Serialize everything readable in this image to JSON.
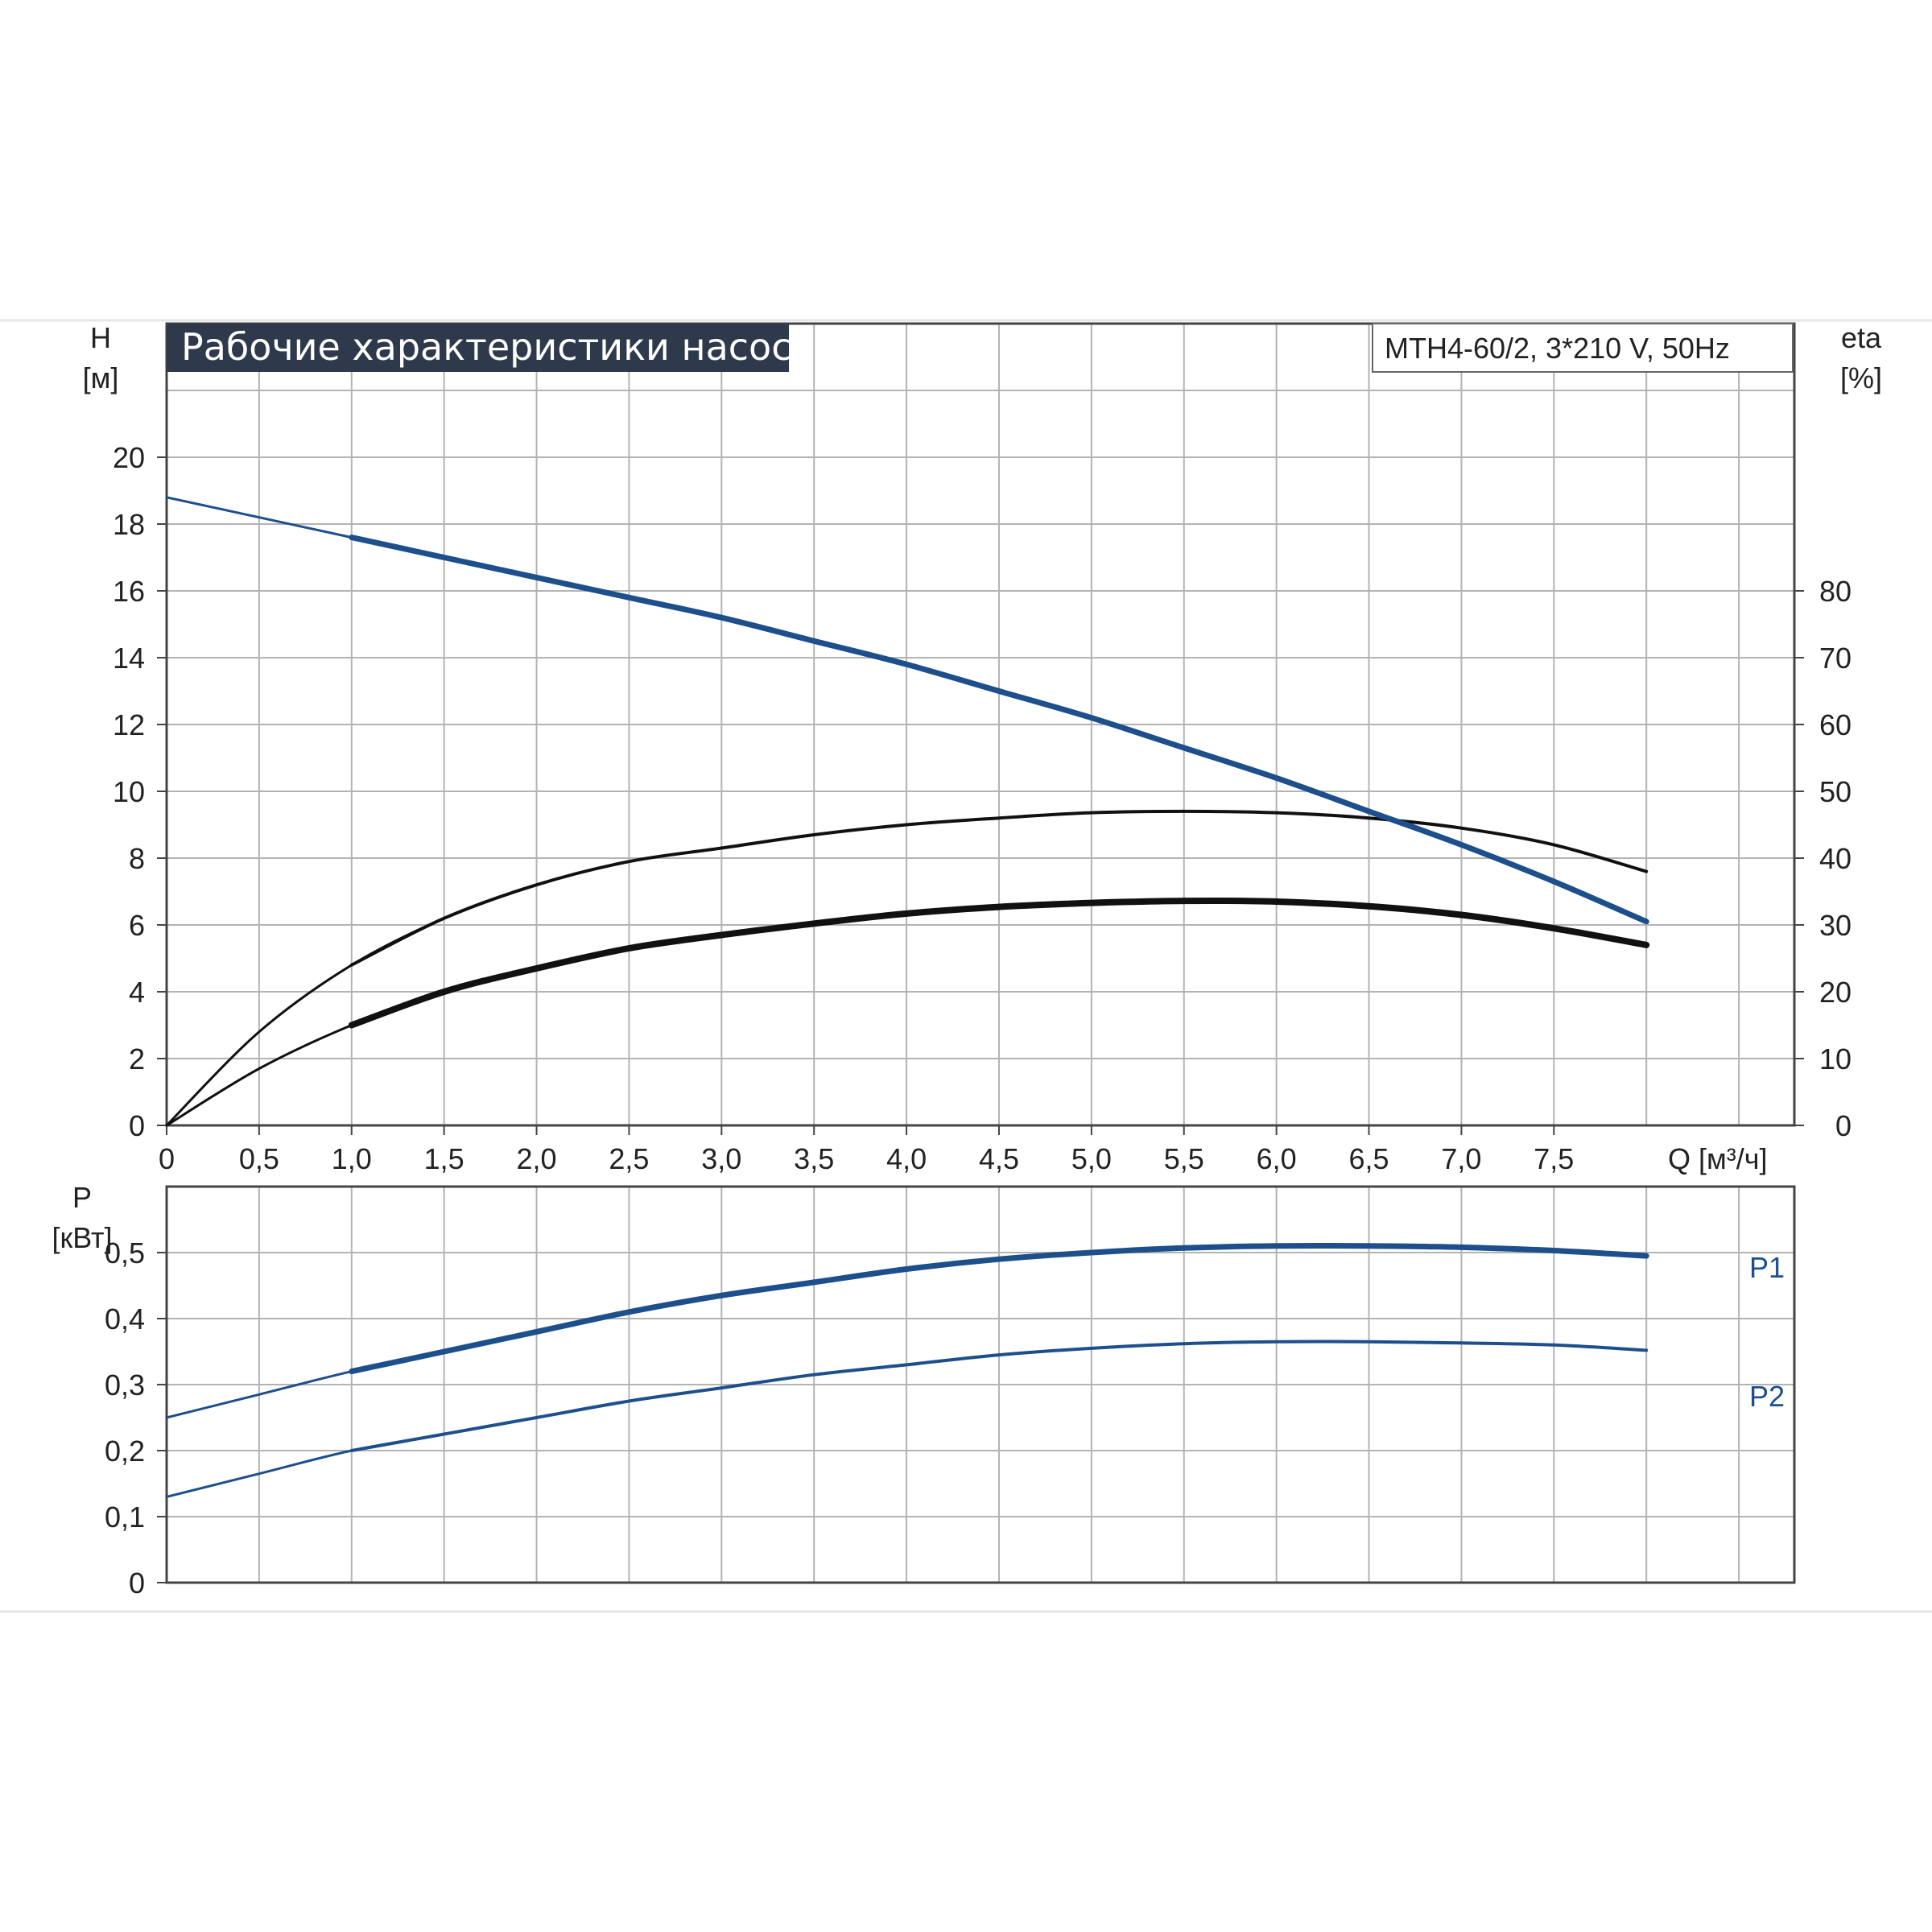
{
  "chart_data": [
    {
      "type": "line",
      "title": "Рабочие характеристики насоса",
      "subtitle": "MTH4-60/2, 3*210 V, 50Hz",
      "ylabel": "H",
      "yunit": "[м]",
      "y2label": "eta",
      "y2unit": "[%]",
      "xlabel": "Q [м³/ч]",
      "x_tick_labels": [
        "0",
        "0,5",
        "1,0",
        "1,5",
        "2,0",
        "2,5",
        "3,0",
        "3,5",
        "4,0",
        "4,5",
        "5,0",
        "5,5",
        "6,0",
        "6,5",
        "7,0",
        "7,5"
      ],
      "y_tick_labels": [
        "0",
        "2",
        "4",
        "6",
        "8",
        "10",
        "12",
        "14",
        "16",
        "18",
        "20"
      ],
      "y2_tick_labels": [
        "0",
        "10",
        "20",
        "30",
        "40",
        "50",
        "60",
        "70",
        "80"
      ],
      "xlim": [
        0,
        8.8
      ],
      "ylim": [
        0,
        24
      ],
      "y2lim": [
        0,
        120
      ],
      "grid": true,
      "colors": {
        "head": "#1c4f8c",
        "efficiency": "#111111",
        "grid": "#b3b3b3",
        "title_bg": "#2e3a4b"
      },
      "series": [
        {
          "axis": "y",
          "x": [
            0,
            0.5,
            1.0,
            1.5,
            2.0,
            2.5,
            3.0,
            3.5,
            4.0,
            4.5,
            5.0,
            5.5,
            6.0,
            6.5,
            7.0,
            7.5,
            8.0
          ],
          "values": [
            18.8,
            18.2,
            17.6,
            17.0,
            16.4,
            15.8,
            15.2,
            14.5,
            13.8,
            13.0,
            12.2,
            11.3,
            10.4,
            9.4,
            8.4,
            7.3,
            6.1
          ]
        },
        {
          "axis": "y2",
          "x": [
            0,
            0.5,
            1.0,
            1.5,
            2.0,
            2.5,
            3.0,
            3.5,
            4.0,
            4.5,
            5.0,
            5.5,
            6.0,
            6.5,
            7.0,
            7.5,
            8.0
          ],
          "values": [
            0,
            14,
            24,
            31,
            36,
            39.5,
            41.5,
            43.5,
            45,
            46,
            46.8,
            47,
            46.8,
            46,
            44.5,
            42,
            38
          ]
        },
        {
          "axis": "y2",
          "x": [
            0,
            0.5,
            1.0,
            1.5,
            2.0,
            2.5,
            3.0,
            3.5,
            4.0,
            4.5,
            5.0,
            5.5,
            6.0,
            6.5,
            7.0,
            7.5,
            8.0
          ],
          "values": [
            0,
            8.5,
            15,
            20,
            23.5,
            26.5,
            28.5,
            30.2,
            31.7,
            32.7,
            33.3,
            33.6,
            33.5,
            32.8,
            31.5,
            29.5,
            27
          ]
        }
      ]
    },
    {
      "type": "line",
      "ylabel": "P",
      "yunit": "[кВт]",
      "y_tick_labels": [
        "0",
        "0,1",
        "0,2",
        "0,3",
        "0,4",
        "0,5"
      ],
      "xlim": [
        0,
        8.8
      ],
      "ylim": [
        0,
        0.6
      ],
      "grid": true,
      "colors": {
        "p1": "#1c4f8c",
        "p2": "#1c4f8c"
      },
      "series": [
        {
          "name": "P1",
          "x": [
            0,
            0.5,
            1.0,
            1.5,
            2.0,
            2.5,
            3.0,
            3.5,
            4.0,
            4.5,
            5.0,
            5.5,
            6.0,
            6.5,
            7.0,
            7.5,
            8.0
          ],
          "values": [
            0.25,
            0.285,
            0.32,
            0.35,
            0.38,
            0.41,
            0.435,
            0.455,
            0.475,
            0.49,
            0.5,
            0.507,
            0.51,
            0.51,
            0.508,
            0.503,
            0.495
          ]
        },
        {
          "name": "P2",
          "x": [
            0,
            0.5,
            1.0,
            1.5,
            2.0,
            2.5,
            3.0,
            3.5,
            4.0,
            4.5,
            5.0,
            5.5,
            6.0,
            6.5,
            7.0,
            7.5,
            8.0
          ],
          "values": [
            0.13,
            0.165,
            0.2,
            0.225,
            0.25,
            0.275,
            0.295,
            0.315,
            0.33,
            0.345,
            0.355,
            0.362,
            0.365,
            0.365,
            0.363,
            0.36,
            0.352
          ]
        }
      ]
    }
  ]
}
